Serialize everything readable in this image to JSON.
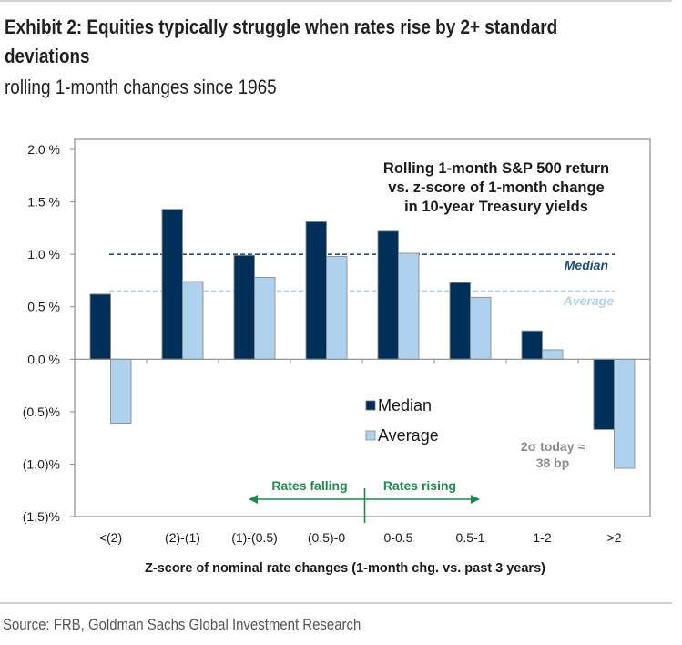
{
  "header": {
    "title_line1": "Exhibit 2: Equities typically struggle when rates rise by 2+ standard",
    "title_line2": "deviations",
    "subtitle": "rolling 1-month changes since 1965"
  },
  "footer": {
    "source": "Source: FRB, Goldman Sachs Global Investment Research"
  },
  "colors": {
    "median": "#003059",
    "average": "#aed2ee",
    "bar_outline": "#8c8c8c",
    "axis": "#8c8c8c",
    "annotation_green": "#1a8c4e",
    "median_line": "#1f4e79",
    "average_line": "#aed2ee",
    "note_gray": "#8c8c8c"
  },
  "chart_data": {
    "type": "bar",
    "title": "Rolling 1-month S&P 500 return vs. z-score of 1-month change in 10-year Treasury yields",
    "title_lines": [
      "Rolling 1-month S&P 500 return",
      "vs. z-score of 1-month change",
      "in 10-year Treasury yields"
    ],
    "xlabel": "Z-score of nominal rate changes (1-month chg. vs. past 3 years)",
    "ylabel": "",
    "ylim": [
      -1.5,
      2.0
    ],
    "yticks": [
      2.0,
      1.5,
      1.0,
      0.5,
      0.0,
      -0.5,
      -1.0,
      -1.5
    ],
    "ytick_labels": [
      "2.0 %",
      "1.5 %",
      "1.0 %",
      "0.5 %",
      "0.0 %",
      "(0.5)%",
      "(1.0)%",
      "(1.5)%"
    ],
    "categories": [
      "<(2)",
      "(2)-(1)",
      "(1)-(0.5)",
      "(0.5)-0",
      "0-0.5",
      "0.5-1",
      "1-2",
      ">2"
    ],
    "series": [
      {
        "name": "Median",
        "values": [
          0.62,
          1.43,
          0.99,
          1.31,
          1.22,
          0.73,
          0.27,
          -0.67
        ]
      },
      {
        "name": "Average",
        "values": [
          -0.61,
          0.74,
          0.78,
          0.98,
          1.01,
          0.59,
          0.09,
          -1.04
        ]
      }
    ],
    "reference_lines": [
      {
        "name": "Median",
        "value": 1.0,
        "style": "dashed"
      },
      {
        "name": "Average",
        "value": 0.65,
        "style": "dashed"
      }
    ],
    "legend": {
      "entries": [
        "Median",
        "Average"
      ],
      "placement": "center"
    },
    "annotations": {
      "rates_falling": "Rates falling",
      "rates_rising": "Rates rising",
      "sigma_note_line1": "2σ today ≈",
      "sigma_note_line2": "38 bp"
    },
    "grid": false
  }
}
